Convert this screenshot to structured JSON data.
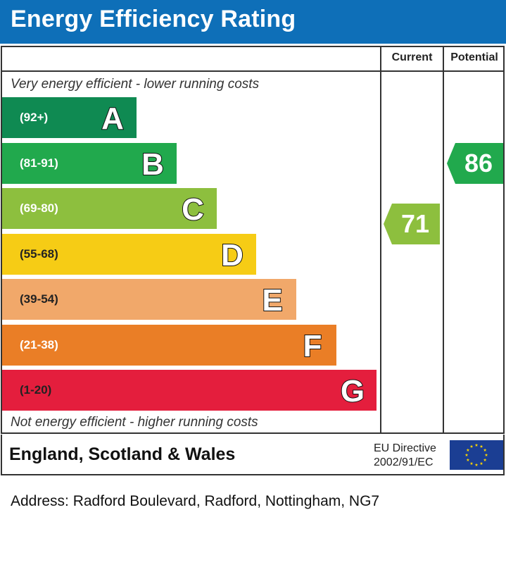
{
  "header": {
    "title": "Energy Efficiency Rating"
  },
  "columns": {
    "current": "Current",
    "potential": "Potential"
  },
  "captions": {
    "top": "Very energy efficient - lower running costs",
    "bottom": "Not energy efficient - higher running costs"
  },
  "chart_data": {
    "type": "bar",
    "title": "Energy Efficiency Rating",
    "categories": [
      "A",
      "B",
      "C",
      "D",
      "E",
      "F",
      "G"
    ],
    "ranges": [
      "(92+)",
      "(81-91)",
      "(69-80)",
      "(55-68)",
      "(39-54)",
      "(21-38)",
      "(1-20)"
    ],
    "colors": [
      "#0f8a52",
      "#21a94d",
      "#8dbf3e",
      "#f6cc15",
      "#f1a86a",
      "#ea7e26",
      "#e41e3d"
    ],
    "current": {
      "label": "Current",
      "value": 71,
      "band": "C",
      "color": "#8dbf3e"
    },
    "potential": {
      "label": "Potential",
      "value": 86,
      "band": "B",
      "color": "#21a94d"
    }
  },
  "footer": {
    "region": "England, Scotland & Wales",
    "eu_line1": "EU Directive",
    "eu_line2": "2002/91/EC",
    "flag_icon": "eu-flag-icon"
  },
  "address": "Address: Radford Boulevard, Radford, Nottingham, NG7"
}
